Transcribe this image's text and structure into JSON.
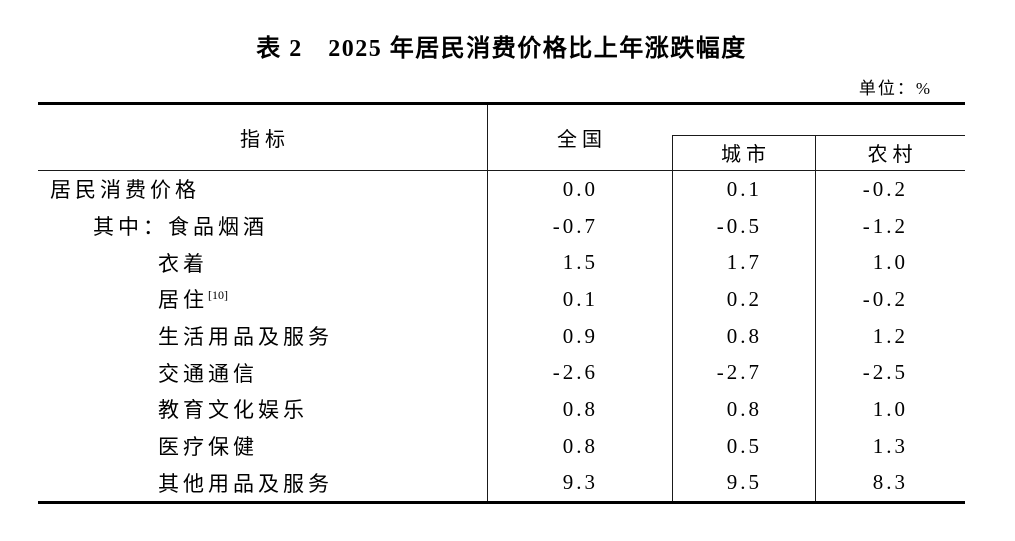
{
  "title": "表 2　2025 年居民消费价格比上年涨跌幅度",
  "unit_label": "单位：%",
  "colors": {
    "text": "#000000",
    "background": "#ffffff",
    "border": "#000000"
  },
  "table": {
    "headers": {
      "indicator": "指标",
      "national": "全国",
      "urban": "城市",
      "rural": "农村"
    },
    "rows": [
      {
        "indicator": "居民消费价格",
        "national": "0.0",
        "urban": "0.1",
        "rural": "-0.2"
      },
      {
        "indicator": "其中：食品烟酒",
        "national": "-0.7",
        "urban": "-0.5",
        "rural": "-1.2"
      },
      {
        "indicator": "衣着",
        "national": "1.5",
        "urban": "1.7",
        "rural": "1.0"
      },
      {
        "indicator": "居住",
        "note": "[10]",
        "national": "0.1",
        "urban": "0.2",
        "rural": "-0.2"
      },
      {
        "indicator": "生活用品及服务",
        "national": "0.9",
        "urban": "0.8",
        "rural": "1.2"
      },
      {
        "indicator": "交通通信",
        "national": "-2.6",
        "urban": "-2.7",
        "rural": "-2.5"
      },
      {
        "indicator": "教育文化娱乐",
        "national": "0.8",
        "urban": "0.8",
        "rural": "1.0"
      },
      {
        "indicator": "医疗保健",
        "national": "0.8",
        "urban": "0.5",
        "rural": "1.3"
      },
      {
        "indicator": "其他用品及服务",
        "national": "9.3",
        "urban": "9.5",
        "rural": "8.3"
      }
    ]
  }
}
